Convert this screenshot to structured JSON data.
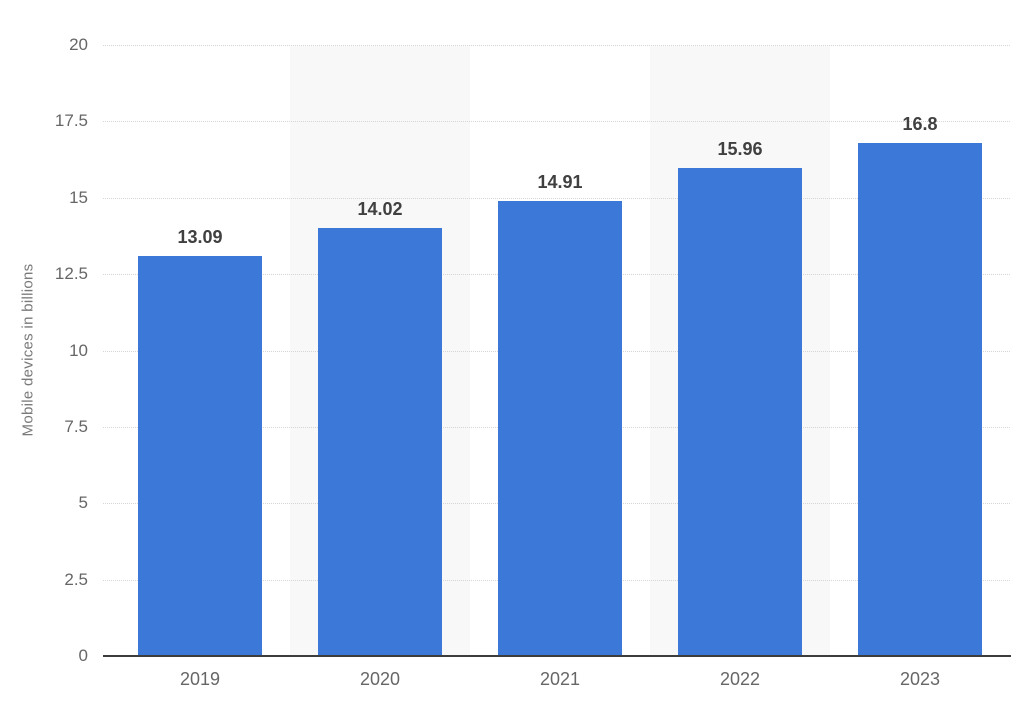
{
  "chart_data": {
    "type": "bar",
    "categories": [
      "2019",
      "2020",
      "2021",
      "2022",
      "2023"
    ],
    "values": [
      13.09,
      14.02,
      14.91,
      15.96,
      16.8
    ],
    "value_labels": [
      "13.09",
      "14.02",
      "14.91",
      "15.96",
      "16.8"
    ],
    "title": "",
    "xlabel": "",
    "ylabel": "Mobile devices in billions",
    "ylim": [
      0,
      20
    ],
    "yticks": [
      0,
      2.5,
      5,
      7.5,
      10,
      12.5,
      15,
      17.5,
      20
    ],
    "ytick_labels": [
      "0",
      "2.5",
      "5",
      "7.5",
      "10",
      "12.5",
      "15",
      "17.5",
      "20"
    ],
    "grid": "horizontal-dotted",
    "legend_position": "none",
    "banded_categories": [
      "2020",
      "2022"
    ],
    "colors": {
      "bar_fill": "#3c78d8",
      "background_band": "#f8f8f8",
      "gridline": "#d5d5d5",
      "axis_line": "#3d3d3d",
      "tick_text": "#666666",
      "value_label_text": "#404040",
      "axis_title_text": "#7a7a7a",
      "background": "#ffffff"
    }
  }
}
